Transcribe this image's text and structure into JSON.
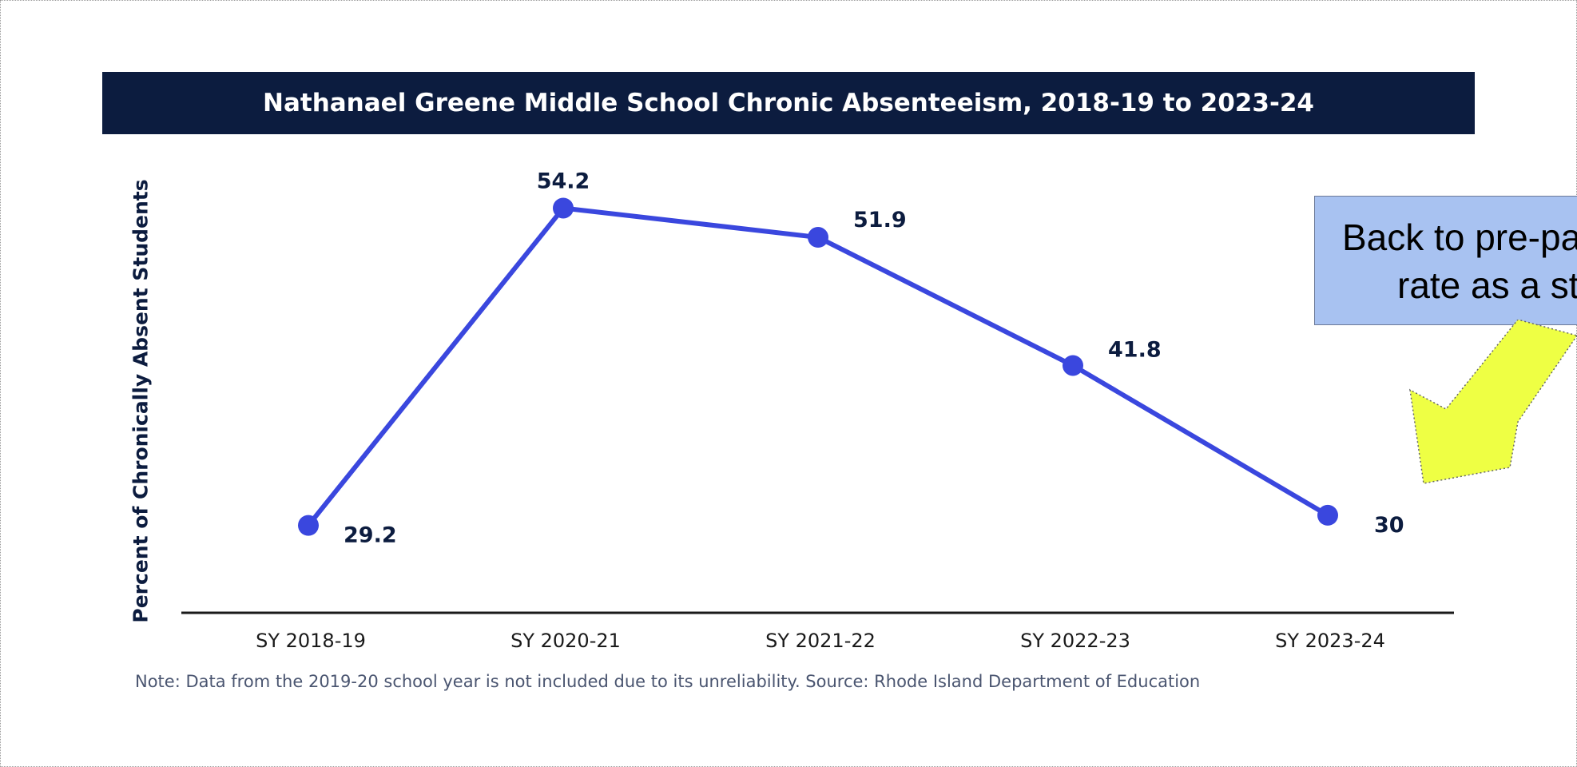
{
  "chart_data": {
    "type": "line",
    "title": "Nathanael Greene Middle School Chronic Absenteeism, 2018-19 to 2023-24",
    "ylabel": "Percent of Chronically Absent Students",
    "xlabel": "",
    "categories": [
      "SY 2018-19",
      "SY 2020-21",
      "SY 2021-22",
      "SY 2022-23",
      "SY 2023-24"
    ],
    "series": [
      {
        "values": [
          29.2,
          54.2,
          51.9,
          41.8,
          30
        ],
        "data_labels": [
          "29.2",
          "54.2",
          "51.9",
          "41.8",
          "30"
        ]
      }
    ],
    "ylim": [
      22,
      57
    ],
    "grid": false,
    "line_color": "#3a47de",
    "axis_color": "#1a1a1a",
    "label_color": "#0c1c3f"
  },
  "note": "Note: Data from the 2019-20 school year is not included due to its unreliability. Source: Rhode Island Department of Education",
  "callout": {
    "line1": "Back to pre-pandemic",
    "line2": "rate as a start"
  },
  "colors": {
    "title_bar": "#0c1c3f",
    "callout_fill": "#a8c2f1",
    "arrow_fill": "#eeff44"
  }
}
